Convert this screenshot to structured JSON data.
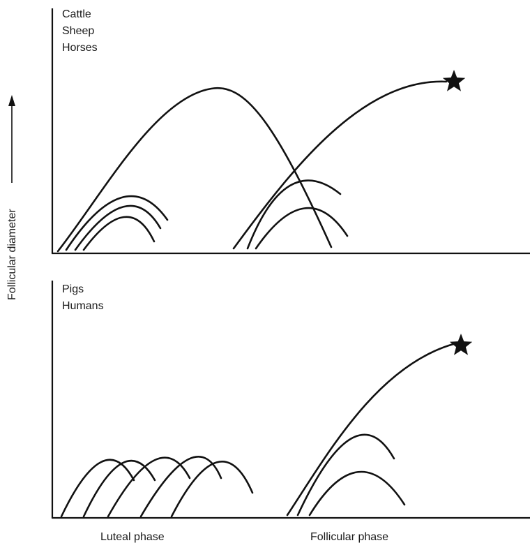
{
  "y_axis_label": "Follicular diameter",
  "x_axis_labels": [
    "Luteal phase",
    "Follicular phase"
  ],
  "panels": [
    {
      "species": [
        "Cattle",
        "Sheep",
        "Horses"
      ]
    },
    {
      "species": [
        "Pigs",
        "Humans"
      ]
    }
  ],
  "colors": {
    "ink": "#111111",
    "background": "#ffffff"
  }
}
